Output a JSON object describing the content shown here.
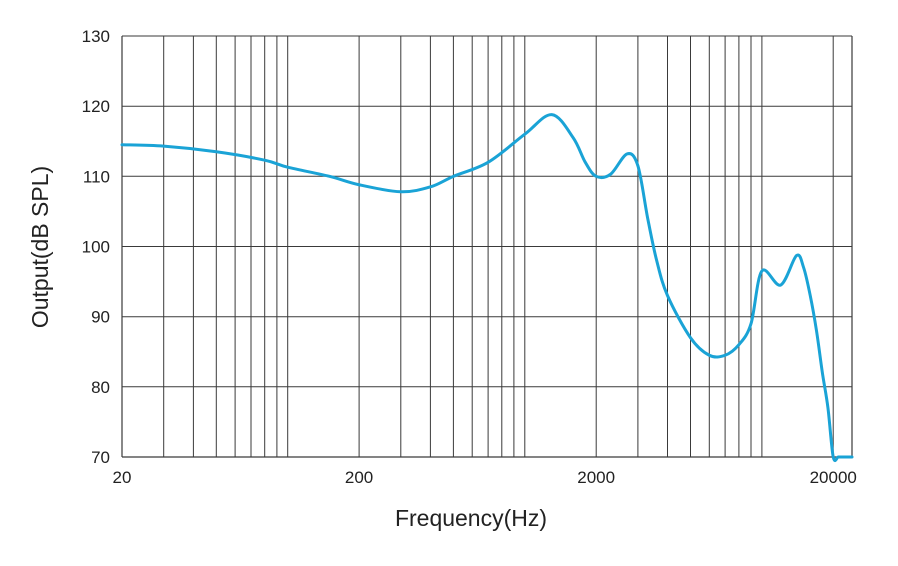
{
  "chart_data": {
    "type": "line",
    "x_scale": "log",
    "xlabel": "Frequency(Hz)",
    "ylabel": "Output(dB SPL)",
    "xlim": [
      20,
      24000
    ],
    "ylim": [
      70,
      130
    ],
    "x_ticks": [
      20,
      200,
      2000,
      20000
    ],
    "x_tick_labels": [
      "20",
      "200",
      "2000",
      "20000"
    ],
    "y_ticks": [
      70,
      80,
      90,
      100,
      110,
      120,
      130
    ],
    "y_tick_labels": [
      "70",
      "80",
      "90",
      "100",
      "110",
      "120",
      "130"
    ],
    "grid": true,
    "color": "#1aa3d6",
    "series": [
      {
        "x": [
          20,
          30,
          50,
          80,
          100,
          150,
          200,
          300,
          400,
          500,
          700,
          1000,
          1300,
          1600,
          1800,
          2000,
          2300,
          2700,
          3000,
          3300,
          3600,
          4000,
          5000,
          6000,
          7000,
          8000,
          9000,
          10000,
          12000,
          14000,
          15000,
          16000,
          17000,
          18000,
          19000,
          20000,
          21000,
          22000,
          24000
        ],
        "y": [
          114.5,
          114.3,
          113.5,
          112.3,
          111.3,
          110.0,
          108.8,
          107.8,
          108.5,
          110.0,
          112.0,
          116.0,
          118.8,
          115.5,
          112.0,
          110.0,
          110.3,
          113.2,
          111.5,
          104.0,
          98.0,
          93.0,
          87.0,
          84.5,
          84.5,
          86.0,
          89.0,
          96.5,
          94.5,
          98.7,
          97.0,
          93.0,
          88.0,
          82.0,
          77.0,
          70.0,
          70.0,
          70.0,
          70.0
        ]
      }
    ]
  }
}
